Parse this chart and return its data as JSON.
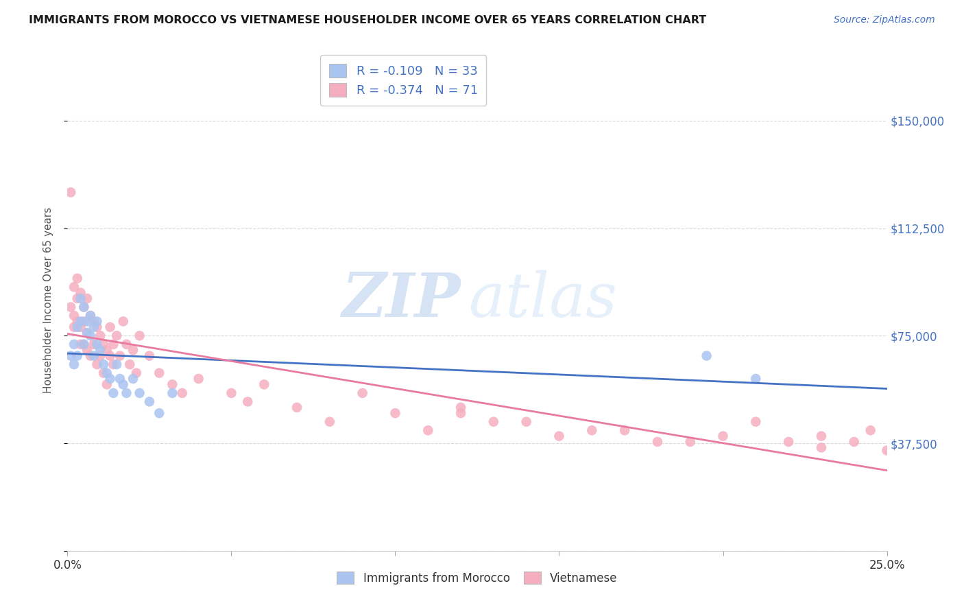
{
  "title": "IMMIGRANTS FROM MOROCCO VS VIETNAMESE HOUSEHOLDER INCOME OVER 65 YEARS CORRELATION CHART",
  "source": "Source: ZipAtlas.com",
  "ylabel": "Householder Income Over 65 years",
  "xlim": [
    0.0,
    0.25
  ],
  "ylim": [
    0,
    175000
  ],
  "yticks": [
    0,
    37500,
    75000,
    112500,
    150000
  ],
  "ytick_labels": [
    "",
    "$37,500",
    "$75,000",
    "$112,500",
    "$150,000"
  ],
  "r1": "-0.109",
  "n1": "33",
  "r2": "-0.374",
  "n2": "71",
  "legend_label1": "Immigrants from Morocco",
  "legend_label2": "Vietnamese",
  "morocco_color": "#aac4f0",
  "vietnamese_color": "#f5aec0",
  "morocco_line_color": "#4472c4",
  "vietnamese_line_color": "#e87aa0",
  "watermark1": "ZIP",
  "watermark2": "atlas",
  "background_color": "#ffffff",
  "grid_color": "#d8d8d8",
  "title_color": "#1a1a1a",
  "source_color": "#4472c4",
  "ytick_color": "#4472c4",
  "scatter_marker_size": 110,
  "morocco_scatter_x": [
    0.001,
    0.002,
    0.002,
    0.003,
    0.003,
    0.004,
    0.004,
    0.005,
    0.005,
    0.006,
    0.006,
    0.007,
    0.007,
    0.008,
    0.008,
    0.009,
    0.009,
    0.01,
    0.011,
    0.012,
    0.013,
    0.014,
    0.015,
    0.016,
    0.017,
    0.018,
    0.02,
    0.022,
    0.025,
    0.028,
    0.032,
    0.195,
    0.21
  ],
  "morocco_scatter_y": [
    68000,
    72000,
    65000,
    78000,
    68000,
    88000,
    80000,
    85000,
    72000,
    80000,
    76000,
    82000,
    75000,
    68000,
    78000,
    80000,
    72000,
    70000,
    65000,
    62000,
    60000,
    55000,
    65000,
    60000,
    58000,
    55000,
    60000,
    55000,
    52000,
    48000,
    55000,
    68000,
    60000
  ],
  "vietnamese_scatter_x": [
    0.001,
    0.001,
    0.002,
    0.002,
    0.002,
    0.003,
    0.003,
    0.003,
    0.004,
    0.004,
    0.004,
    0.005,
    0.005,
    0.005,
    0.006,
    0.006,
    0.006,
    0.007,
    0.007,
    0.008,
    0.008,
    0.009,
    0.009,
    0.01,
    0.01,
    0.011,
    0.011,
    0.012,
    0.012,
    0.013,
    0.013,
    0.014,
    0.014,
    0.015,
    0.016,
    0.017,
    0.018,
    0.019,
    0.02,
    0.021,
    0.022,
    0.025,
    0.028,
    0.032,
    0.035,
    0.04,
    0.05,
    0.055,
    0.06,
    0.07,
    0.08,
    0.09,
    0.1,
    0.11,
    0.12,
    0.13,
    0.15,
    0.17,
    0.19,
    0.21,
    0.23,
    0.24,
    0.245,
    0.25,
    0.22,
    0.23,
    0.2,
    0.18,
    0.16,
    0.14,
    0.12
  ],
  "vietnamese_scatter_y": [
    125000,
    85000,
    92000,
    82000,
    78000,
    95000,
    88000,
    80000,
    90000,
    78000,
    72000,
    85000,
    80000,
    72000,
    88000,
    76000,
    70000,
    82000,
    68000,
    80000,
    72000,
    78000,
    65000,
    75000,
    68000,
    72000,
    62000,
    70000,
    58000,
    68000,
    78000,
    65000,
    72000,
    75000,
    68000,
    80000,
    72000,
    65000,
    70000,
    62000,
    75000,
    68000,
    62000,
    58000,
    55000,
    60000,
    55000,
    52000,
    58000,
    50000,
    45000,
    55000,
    48000,
    42000,
    50000,
    45000,
    40000,
    42000,
    38000,
    45000,
    40000,
    38000,
    42000,
    35000,
    38000,
    36000,
    40000,
    38000,
    42000,
    45000,
    48000
  ]
}
